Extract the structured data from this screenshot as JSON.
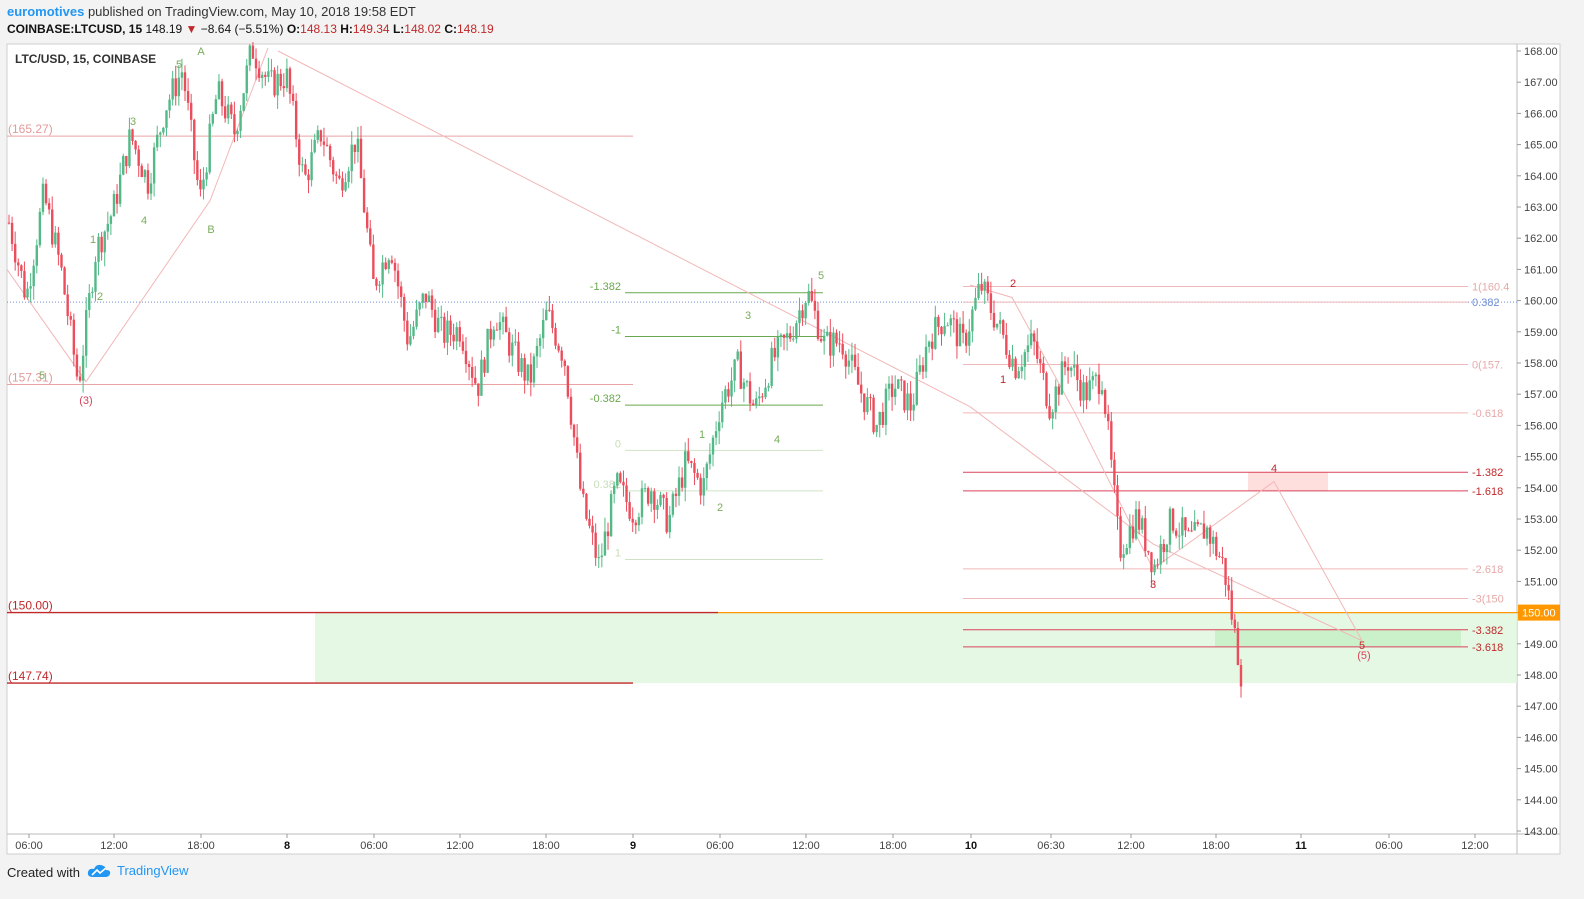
{
  "header": {
    "author": "euromotives",
    "published_text": "published on TradingView.com, May 10, 2018 19:58 EDT",
    "symbol": "COINBASE:LTCUSD, 15",
    "last": "148.19",
    "change": "−8.64 (−5.51%)",
    "ohlc": [
      {
        "label": "O:",
        "value": "148.13"
      },
      {
        "label": "H:",
        "value": "149.34"
      },
      {
        "label": "L:",
        "value": "148.02"
      },
      {
        "label": "C:",
        "value": "148.19"
      }
    ]
  },
  "footer": {
    "created_with": "Created with",
    "brand": "TradingView"
  },
  "colors": {
    "up": "#53b987",
    "down": "#eb4d5c",
    "wave_green": "#6aa84f",
    "level_red": "#c0282a",
    "fib_pink": "#e8a0a0",
    "orange": "#ff9800",
    "zone_green": "#dff7df"
  },
  "chart_data": {
    "type": "candlestick",
    "title": "LTC/USD, 15, COINBASE",
    "ylim": [
      143,
      168.3
    ],
    "y_ticks": [
      "168.00",
      "167.00",
      "166.00",
      "165.00",
      "164.00",
      "163.00",
      "162.00",
      "161.00",
      "160.00",
      "159.00",
      "158.00",
      "157.00",
      "156.00",
      "155.00",
      "154.00",
      "153.00",
      "152.00",
      "151.00",
      "150.00",
      "149.00",
      "148.00",
      "147.00",
      "146.00",
      "145.00",
      "144.00",
      "143.00"
    ],
    "x_ticks": [
      "06:00",
      "12:00",
      "18:00",
      "8",
      "06:00",
      "12:00",
      "18:00",
      "9",
      "06:00",
      "12:00",
      "18:00",
      "10",
      "06:30",
      "12:00",
      "18:00",
      "11",
      "06:00",
      "12:00"
    ],
    "bold_x_ticks": [
      "8",
      "9",
      "10",
      "11"
    ],
    "last_price_label": "150.00",
    "path": [
      162.5,
      160.1,
      163.4,
      161.0,
      157.3,
      161.6,
      162.9,
      165.3,
      163.8,
      166.2,
      167.4,
      163.2,
      166.7,
      165.4,
      168.1,
      166.9,
      167.2,
      163.8,
      165.4,
      163.7,
      165.2,
      160.5,
      161.8,
      158.7,
      160.2,
      158.9,
      159.1,
      157.2,
      159.6,
      158.4,
      157.4,
      159.6,
      158.2,
      153.6,
      151.5,
      154.1,
      153.2,
      154.0,
      152.9,
      154.8,
      154.0,
      156.7,
      157.9,
      156.5,
      158.1,
      158.9,
      160.3,
      158.6,
      158.7,
      157.2,
      156.0,
      157.3,
      156.6,
      158.8,
      159.5,
      158.6,
      160.5,
      159.2,
      157.9,
      158.7,
      156.6,
      158.1,
      157.0,
      157.6,
      152.0,
      153.1,
      151.5,
      153.0,
      152.3,
      152.7,
      151.5,
      148.1
    ],
    "horizontal_levels": [
      {
        "label": "(165.27)",
        "value": 165.27
      },
      {
        "label": "(157.31)",
        "value": 157.31
      },
      {
        "label": "(150.00)",
        "value": 150.0
      },
      {
        "label": "(147.74)",
        "value": 147.74
      }
    ],
    "fib_left": [
      {
        "label": "-1.382",
        "value": 160.25
      },
      {
        "label": "-1",
        "value": 158.85
      },
      {
        "label": "-0.382",
        "value": 156.65
      },
      {
        "label": "0",
        "value": 155.2
      },
      {
        "label": "0.382",
        "value": 153.9
      },
      {
        "label": "1",
        "value": 151.7
      }
    ],
    "fib_right": [
      {
        "label": "1(160.4",
        "value": 160.45
      },
      {
        "label": "0.382",
        "value": 159.95
      },
      {
        "label": "0(157.",
        "value": 157.95
      },
      {
        "label": "-0.618",
        "value": 156.4
      },
      {
        "label": "-1.382",
        "value": 154.5
      },
      {
        "label": "-1.618",
        "value": 153.9
      },
      {
        "label": "-2.618",
        "value": 151.4
      },
      {
        "label": "-3(150",
        "value": 150.45
      },
      {
        "label": "-3.382",
        "value": 149.45
      },
      {
        "label": "-3.618",
        "value": 148.9
      }
    ],
    "wave_labels_green": [
      "5",
      "A",
      "3",
      "4",
      "B",
      "1",
      "2",
      "5",
      "3",
      "1",
      "-1",
      "-1.382",
      "4",
      "2",
      "5",
      "3",
      "1",
      "2",
      "4"
    ],
    "wave_labels_red": [
      "(3)",
      "2",
      "1",
      "3",
      "4",
      "5",
      "(5)"
    ]
  }
}
